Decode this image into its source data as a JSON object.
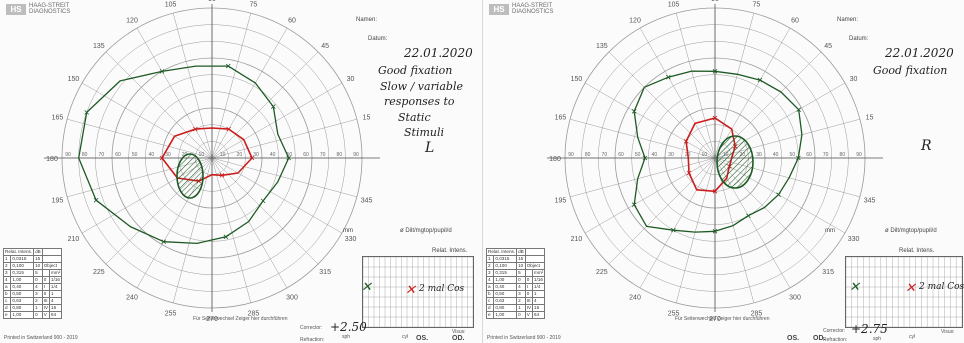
{
  "left": {
    "brand": {
      "name": "HAAG-STREIT",
      "sub": "DIAGNOSTICS",
      "mark": "HS"
    },
    "labels": {
      "name": "Namen:",
      "date": "Datum:",
      "mm": "mm",
      "pupil": "ø Dilt/mgtop/pupil/d",
      "intensity_header": "Relat. Intens.",
      "rel_intens": "Relat. Intens.",
      "intens_unit": "dB",
      "corrector": "Corrector:",
      "refraction": "Refraction:",
      "sph": "sph",
      "cyl": "cyl",
      "visus": "Visus:",
      "os": "OS.",
      "od": "OD.",
      "side_change": "Für Seitenwechsel Zeiger hier durchführen",
      "rotate_note": "To change the side, turn pointer the left",
      "footer": "Printed in Switzerland 900 - 2019"
    },
    "handwriting": {
      "date": "22.01.2020",
      "note_1": "Good fixation",
      "note_2": "Slow / variable",
      "note_3": "responses to",
      "note_4": "Static",
      "note_5": "Stimuli",
      "eye": "L",
      "corrector_value": "+2.50",
      "target_note": "2 mal Cos"
    },
    "angles": [
      "90",
      "105",
      "120",
      "135",
      "150",
      "165",
      "180",
      "195",
      "210",
      "225",
      "240",
      "255",
      "270",
      "285",
      "300",
      "315",
      "330",
      "345",
      "30",
      "45",
      "60",
      "75",
      "15"
    ],
    "radial_ticks": [
      "90",
      "80",
      "70",
      "60",
      "50",
      "40",
      "30",
      "20",
      "10",
      "10",
      "20",
      "30",
      "40",
      "50",
      "60",
      "70",
      "80",
      "90"
    ]
  },
  "right": {
    "brand": {
      "name": "HAAG-STREIT",
      "sub": "DIAGNOSTICS",
      "mark": "HS"
    },
    "labels": {
      "name": "Namen:",
      "date": "Datum:",
      "mm": "mm",
      "pupil": "ø Dilt/mgtop/pupil/d",
      "intensity_header": "Relat. Intens.",
      "rel_intens": "Relat. Intens.",
      "intens_unit": "dB",
      "corrector": "Corrector:",
      "refraction": "Refraction:",
      "sph": "sph",
      "cyl": "cyl",
      "visus": "Visus:",
      "os": "OS.",
      "od": "OD.",
      "side_change": "Für Seitenwechsel Zeiger hier durchführen",
      "rotate_note": "To change the side, swing pointer the right",
      "footer": "Printed in Switzerland 900 - 2019"
    },
    "handwriting": {
      "date": "22.01.2020",
      "note_1": "Good fixation",
      "eye": "R",
      "corrector_value": "+2.75",
      "target_note": "2 mal Cos"
    },
    "angles": [
      "90",
      "105",
      "120",
      "135",
      "150",
      "165",
      "180",
      "195",
      "210",
      "225",
      "240",
      "255",
      "270",
      "285",
      "300",
      "315",
      "330",
      "345",
      "30",
      "45",
      "60",
      "75",
      "15"
    ],
    "radial_ticks": [
      "90",
      "80",
      "70",
      "60",
      "50",
      "40",
      "30",
      "20",
      "10",
      "10",
      "20",
      "30",
      "40",
      "50",
      "60",
      "70",
      "80",
      "90"
    ]
  },
  "intensity_table": {
    "header": [
      "Relat. Intens.",
      "dB",
      "Object",
      "mm²"
    ],
    "rows": [
      [
        "1",
        "0,0315",
        "15",
        "",
        "",
        ""
      ],
      [
        "2",
        "0,100",
        "10",
        "Object",
        "",
        ""
      ],
      [
        "3",
        "0,315",
        "5",
        "",
        "",
        "mm²"
      ],
      [
        "4",
        "1,00",
        "0",
        "0",
        "1/16",
        ""
      ],
      [
        "a",
        "0,40",
        "4",
        "I",
        "1/4",
        ""
      ],
      [
        "b",
        "0,50",
        "3",
        "II",
        "1",
        ""
      ],
      [
        "c",
        "0,63",
        "2",
        "III",
        "4",
        ""
      ],
      [
        "d",
        "0,80",
        "1",
        "IV",
        "16",
        ""
      ],
      [
        "e",
        "1,00",
        "0",
        "V",
        "64",
        ""
      ]
    ]
  },
  "grid_headers": {
    "levels": [
      "4",
      "3",
      "2",
      "1"
    ],
    "letters": [
      "e",
      "d",
      "c",
      "b",
      "a"
    ],
    "objects": [
      "0",
      "I",
      "II",
      "III",
      "IV",
      "V"
    ]
  },
  "colors": {
    "green": "#1e5a24",
    "red": "#cc1b1b",
    "grid": "#9a9a9a",
    "hatch": "#1e5a24"
  }
}
